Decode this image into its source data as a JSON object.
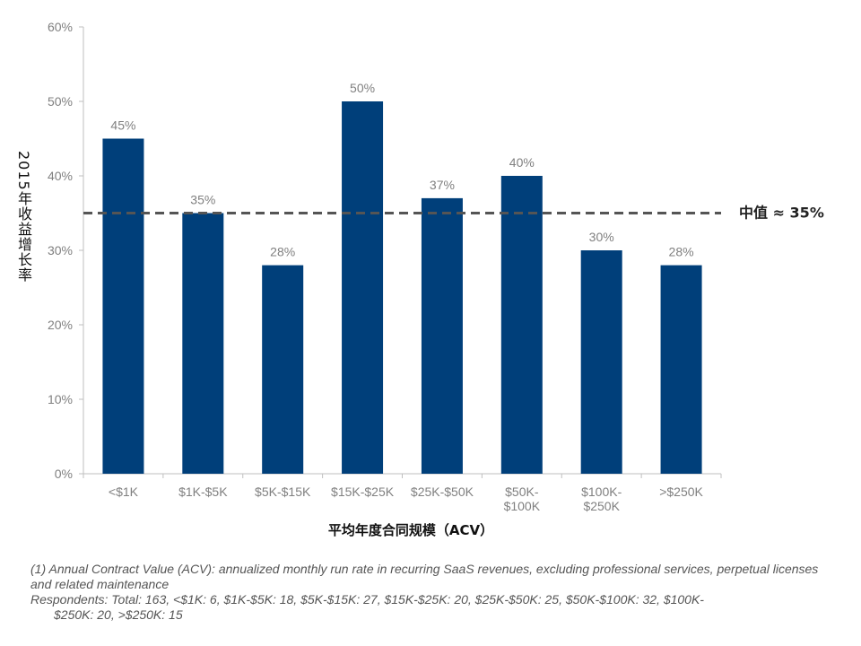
{
  "chart_data": {
    "type": "bar",
    "categories": [
      [
        "<$1K"
      ],
      [
        "$1K-$5K"
      ],
      [
        "$5K-$15K"
      ],
      [
        "$15K-$25K"
      ],
      [
        "$25K-$50K"
      ],
      [
        "$50K-",
        "$100K"
      ],
      [
        "$100K-",
        "$250K"
      ],
      [
        ">$250K"
      ]
    ],
    "values": [
      45,
      35,
      28,
      50,
      37,
      40,
      30,
      28
    ],
    "data_labels": [
      "45%",
      "35%",
      "28%",
      "50%",
      "37%",
      "40%",
      "30%",
      "28%"
    ],
    "yticks": [
      0,
      10,
      20,
      30,
      40,
      50,
      60
    ],
    "ytick_labels": [
      "0%",
      "10%",
      "20%",
      "30%",
      "40%",
      "50%",
      "60%"
    ],
    "ylim": [
      0,
      60
    ],
    "ylabel": "2015年收益增长率",
    "xlabel": "平均年度合同规模（ACV）",
    "median": {
      "value": 35,
      "label": "中值 ≈ 35%"
    },
    "bar_color": "#003f7a",
    "median_color": "#555555",
    "grid": false
  },
  "footnotes": {
    "note1": "(1) Annual Contract Value (ACV): annualized monthly run rate in recurring SaaS revenues, excluding professional services, perpetual licenses and related maintenance",
    "respondents_line1": "Respondents: Total: 163, <$1K: 6, $1K-$5K: 18, $5K-$15K: 27, $15K-$25K: 20, $25K-$50K: 25, $50K-$100K: 32, $100K-",
    "respondents_line2": "$250K: 20, >$250K: 15"
  }
}
